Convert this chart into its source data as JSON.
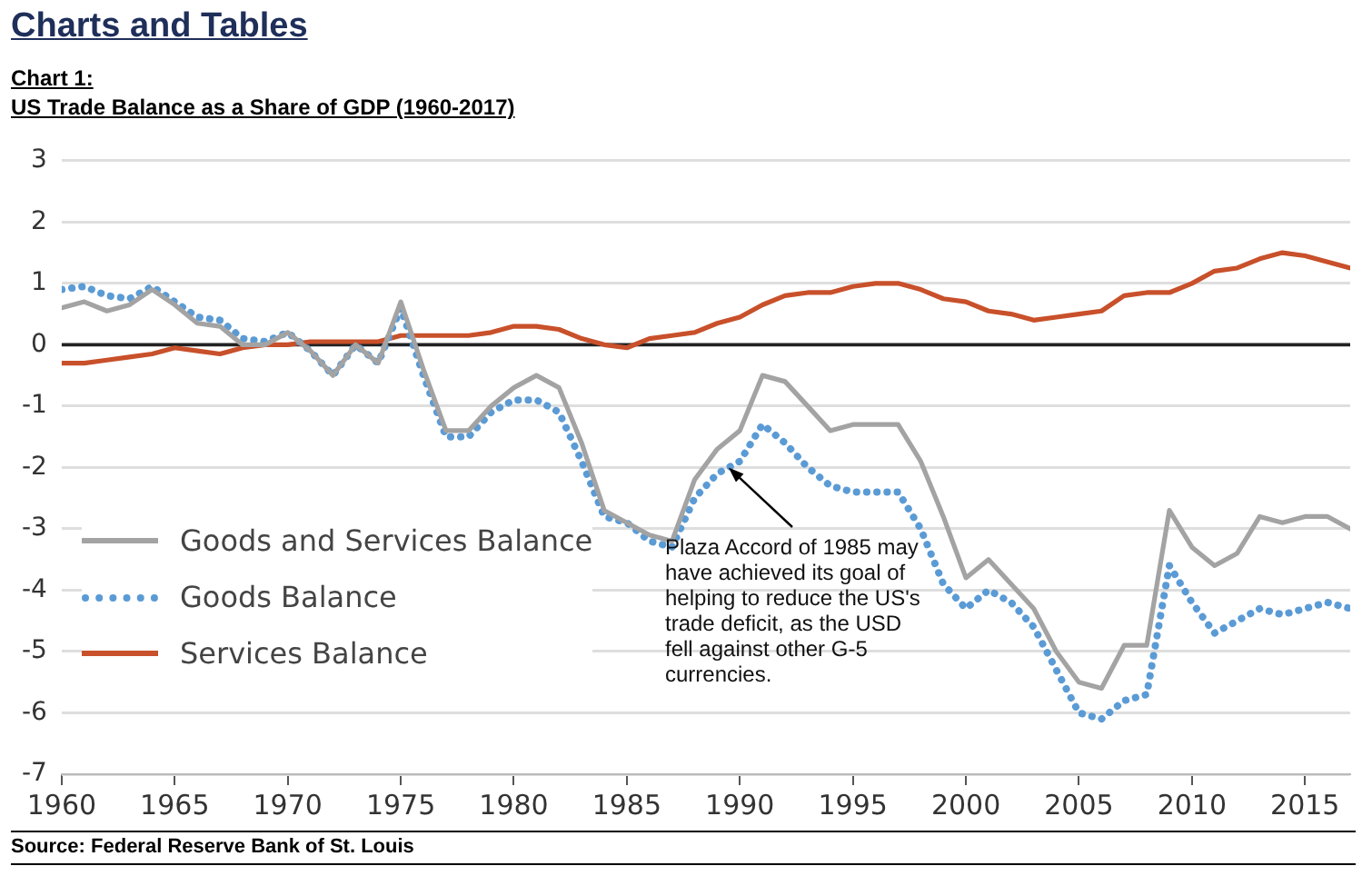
{
  "chart_data": {
    "type": "line",
    "title": "Chart 1:",
    "subtitle": "US Trade Balance as a Share of GDP (1960-2017)",
    "x": [
      1960,
      1961,
      1962,
      1963,
      1964,
      1965,
      1966,
      1967,
      1968,
      1969,
      1970,
      1971,
      1972,
      1973,
      1974,
      1975,
      1976,
      1977,
      1978,
      1979,
      1980,
      1981,
      1982,
      1983,
      1984,
      1985,
      1986,
      1987,
      1988,
      1989,
      1990,
      1991,
      1992,
      1993,
      1994,
      1995,
      1996,
      1997,
      1998,
      1999,
      2000,
      2001,
      2002,
      2003,
      2004,
      2005,
      2006,
      2007,
      2008,
      2009,
      2010,
      2011,
      2012,
      2013,
      2014,
      2015,
      2016,
      2017
    ],
    "series": [
      {
        "name": "Goods and Services Balance",
        "color": "#a3a3a3",
        "line_style": "solid",
        "values": [
          0.6,
          0.7,
          0.55,
          0.65,
          0.9,
          0.65,
          0.35,
          0.3,
          0.0,
          0.0,
          0.2,
          -0.1,
          -0.5,
          0.0,
          -0.3,
          0.7,
          -0.4,
          -1.4,
          -1.4,
          -1.0,
          -0.7,
          -0.5,
          -0.7,
          -1.6,
          -2.7,
          -2.9,
          -3.1,
          -3.2,
          -2.2,
          -1.7,
          -1.4,
          -0.5,
          -0.6,
          -1.0,
          -1.4,
          -1.3,
          -1.3,
          -1.3,
          -1.9,
          -2.8,
          -3.8,
          -3.5,
          -3.9,
          -4.3,
          -5.0,
          -5.5,
          -5.6,
          -4.9,
          -4.9,
          -2.7,
          -3.3,
          -3.6,
          -3.4,
          -2.8,
          -2.9,
          -2.8,
          -2.8,
          -3.0
        ]
      },
      {
        "name": "Goods Balance",
        "color": "#5b9bd5",
        "line_style": "dotted",
        "values": [
          0.9,
          0.95,
          0.8,
          0.75,
          0.95,
          0.7,
          0.45,
          0.4,
          0.1,
          0.05,
          0.2,
          -0.1,
          -0.5,
          0.0,
          -0.3,
          0.6,
          -0.5,
          -1.5,
          -1.5,
          -1.1,
          -0.9,
          -0.9,
          -1.1,
          -1.9,
          -2.8,
          -2.9,
          -3.2,
          -3.3,
          -2.5,
          -2.1,
          -1.9,
          -1.3,
          -1.6,
          -2.0,
          -2.3,
          -2.4,
          -2.4,
          -2.4,
          -3.0,
          -3.9,
          -4.3,
          -4.0,
          -4.2,
          -4.6,
          -5.3,
          -6.0,
          -6.1,
          -5.8,
          -5.7,
          -3.6,
          -4.2,
          -4.7,
          -4.5,
          -4.3,
          -4.4,
          -4.3,
          -4.2,
          -4.3
        ]
      },
      {
        "name": "Services Balance",
        "color": "#c8502a",
        "line_style": "solid",
        "values": [
          -0.3,
          -0.3,
          -0.25,
          -0.2,
          -0.15,
          -0.05,
          -0.1,
          -0.15,
          -0.05,
          0.0,
          0.0,
          0.05,
          0.05,
          0.05,
          0.05,
          0.15,
          0.15,
          0.15,
          0.15,
          0.2,
          0.3,
          0.3,
          0.25,
          0.1,
          0.0,
          -0.05,
          0.1,
          0.15,
          0.2,
          0.35,
          0.45,
          0.65,
          0.8,
          0.85,
          0.85,
          0.95,
          1.0,
          1.0,
          0.9,
          0.75,
          0.7,
          0.55,
          0.5,
          0.4,
          0.45,
          0.5,
          0.55,
          0.8,
          0.85,
          0.85,
          1.0,
          1.2,
          1.25,
          1.4,
          1.5,
          1.45,
          1.35,
          1.25
        ]
      }
    ],
    "xlim": [
      1960,
      2017
    ],
    "xticks": [
      1960,
      1965,
      1970,
      1975,
      1980,
      1985,
      1990,
      1995,
      2000,
      2005,
      2010,
      2015
    ],
    "ylim": [
      -7,
      3
    ],
    "yticks": [
      -7,
      -6,
      -5,
      -4,
      -3,
      -2,
      -1,
      0,
      1,
      2,
      3
    ],
    "grid": "y",
    "legend": "bottom left",
    "marker": "none",
    "ref_lines": [
      {
        "axis": "y",
        "value": 0,
        "color": "#222222"
      }
    ],
    "annotations": [
      "Charts and Tables",
      {
        "text": "Plaza Accord of 1985 may have achieved its goal of helping to reduce the US's trade deficit, as the USD fell against other G-5 currencies.",
        "x": 1989.5,
        "y": -2
      },
      "Source: Federal Reserve Bank of St. Louis"
    ]
  }
}
